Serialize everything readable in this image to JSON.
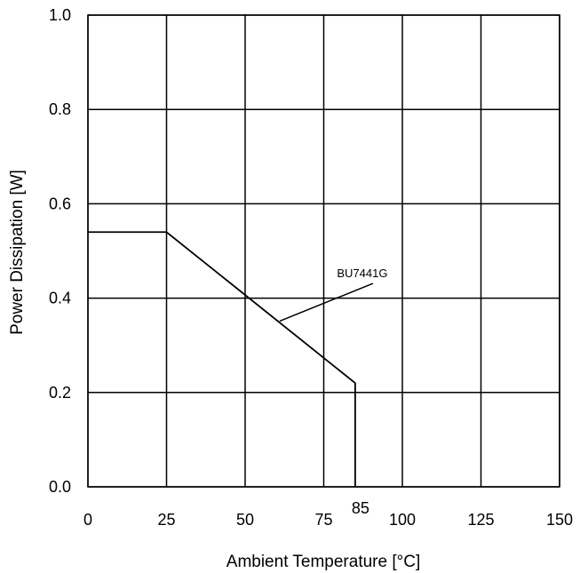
{
  "chart_data": {
    "type": "line",
    "title": "",
    "xlabel": "Ambient Temperature [°C]",
    "ylabel": "Power Dissipation [W]",
    "xlim": [
      0,
      150
    ],
    "ylim": [
      0,
      1.0
    ],
    "x_ticks": [
      0,
      25,
      50,
      75,
      100,
      125,
      150
    ],
    "x_tick_labels": [
      "0",
      "25",
      "50",
      "75",
      "100",
      "125",
      "150"
    ],
    "y_ticks": [
      0,
      0.2,
      0.4,
      0.6,
      0.8,
      1.0
    ],
    "y_tick_labels": [
      "0.0",
      "0.2",
      "0.4",
      "0.6",
      "0.8",
      "1.0"
    ],
    "grid": true,
    "series": [
      {
        "name": "BU7441G",
        "x": [
          0,
          25,
          85,
          85
        ],
        "y": [
          0.54,
          0.54,
          0.22,
          0
        ]
      }
    ],
    "annotations": [
      {
        "text": "BU7441G",
        "x": 85,
        "y": 0.45,
        "points_to": {
          "x": 61,
          "y": 0.34
        }
      },
      {
        "text": "85",
        "x": 85,
        "y": 0
      }
    ],
    "colors": {
      "line": "#000000",
      "grid": "#000000",
      "background": "#ffffff"
    }
  }
}
